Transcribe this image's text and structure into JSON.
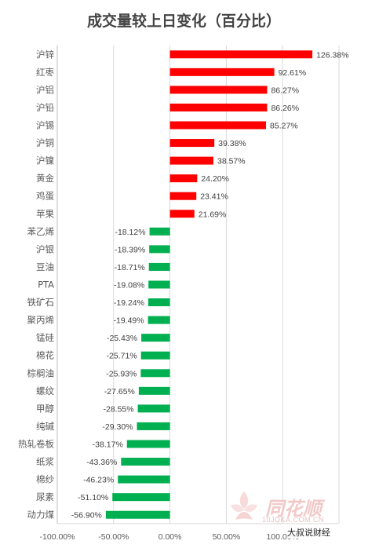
{
  "chart_data": {
    "type": "bar",
    "orientation": "horizontal",
    "title": "成交量较上日变化（百分比）",
    "categories": [
      "沪锌",
      "红枣",
      "沪铝",
      "沪铅",
      "沪锡",
      "沪铜",
      "沪镍",
      "黄金",
      "鸡蛋",
      "苹果",
      "苯乙烯",
      "沪银",
      "豆油",
      "PTA",
      "铁矿石",
      "聚丙烯",
      "锰硅",
      "棉花",
      "棕榈油",
      "螺纹",
      "甲醇",
      "纯碱",
      "热轧卷板",
      "纸浆",
      "棉纱",
      "尿素",
      "动力煤"
    ],
    "values": [
      126.38,
      92.61,
      86.27,
      86.26,
      85.27,
      39.38,
      38.57,
      24.2,
      23.41,
      21.69,
      -18.12,
      -18.39,
      -18.71,
      -19.08,
      -19.24,
      -19.49,
      -25.43,
      -25.71,
      -25.93,
      -27.65,
      -28.55,
      -29.3,
      -38.17,
      -43.36,
      -46.23,
      -51.1,
      -56.9
    ],
    "value_labels": [
      "126.38%",
      "92.61%",
      "86.27%",
      "86.26%",
      "85.27%",
      "39.38%",
      "38.57%",
      "24.20%",
      "23.41%",
      "21.69%",
      "-18.12%",
      "-18.39%",
      "-18.71%",
      "-19.08%",
      "-19.24%",
      "-19.49%",
      "-25.43%",
      "-25.71%",
      "-25.93%",
      "-27.65%",
      "-28.55%",
      "-29.30%",
      "-38.17%",
      "-43.36%",
      "-46.23%",
      "-51.10%",
      "-56.90%"
    ],
    "xlim": [
      -100,
      150
    ],
    "xticks": [
      -100,
      -50,
      0,
      50,
      100
    ],
    "xtick_labels": [
      "-100.00%",
      "-50.00%",
      "0.00%",
      "50.00%",
      "100.00%"
    ],
    "grid": true,
    "legend": "none",
    "colors": {
      "positive": "#ff0000",
      "negative": "#00b050",
      "grid": "#d9d9d9",
      "axis": "#bfbfbf"
    }
  },
  "watermark": {
    "brand": "同花顺",
    "sub": "10JQKA.COM.CN"
  },
  "account_tag": "大叔说财经"
}
